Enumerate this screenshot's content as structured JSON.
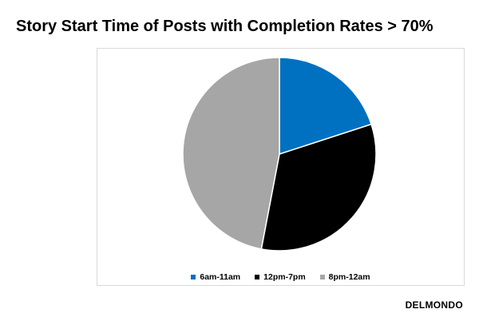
{
  "title": "Story Start Time of Posts with Completion Rates > 70%",
  "brand": "DELMONDO",
  "chart_data": {
    "type": "pie",
    "title": "Story Start Time of Posts with Completion Rates > 70%",
    "categories": [
      "6am-11am",
      "12pm-7pm",
      "8pm-12am"
    ],
    "values": [
      20,
      33,
      47
    ],
    "colors": [
      "#0070c0",
      "#000000",
      "#a6a6a6"
    ],
    "legend": "bottom",
    "start_angle": "12 o'clock, clockwise"
  }
}
